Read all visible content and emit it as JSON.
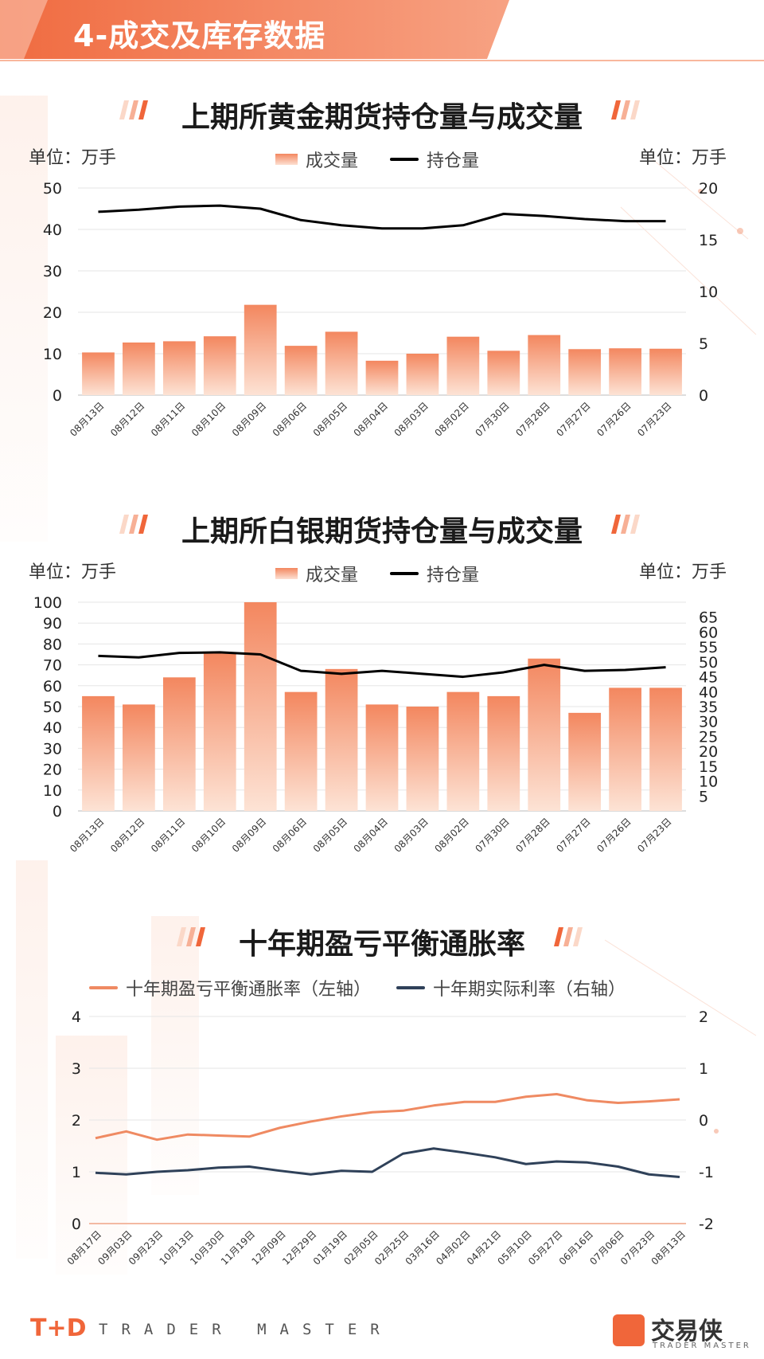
{
  "header": {
    "title": "4-成交及库存数据"
  },
  "gold": {
    "title": "上期所黄金期货持仓量与成交量",
    "unit_left": "单位：万手",
    "unit_right": "单位：万手",
    "legend_bar": "成交量",
    "legend_line": "持仓量"
  },
  "silver": {
    "title": "上期所白银期货持仓量与成交量",
    "unit_left": "单位：万手",
    "unit_right": "单位：万手",
    "legend_bar": "成交量",
    "legend_line": "持仓量"
  },
  "breakeven": {
    "title": "十年期盈亏平衡通胀率",
    "legend_a": "十年期盈亏平衡通胀率（左轴）",
    "legend_b": "十年期实际利率（右轴）"
  },
  "footer": {
    "logo": "T+D",
    "text": "TRADER MASTER",
    "brand": "交易侠",
    "brand_sub": "TRADER MASTER"
  },
  "colors": {
    "accent": "#f3875f",
    "line_dark": "#000000",
    "real_rate": "#2f4159",
    "breakeven": "#ef8a62"
  },
  "chart_data": [
    {
      "type": "bar",
      "categories": [
        "08月13日",
        "08月12日",
        "08月11日",
        "08月10日",
        "08月09日",
        "08月06日",
        "08月05日",
        "08月04日",
        "08月03日",
        "08月02日",
        "07月30日",
        "07月28日",
        "07月27日",
        "07月26日",
        "07月23日"
      ],
      "series": [
        {
          "name": "成交量",
          "axis": "left",
          "kind": "bar",
          "values": [
            10.3,
            12.7,
            13.0,
            14.2,
            21.8,
            11.9,
            15.3,
            8.3,
            10.0,
            14.1,
            10.7,
            14.5,
            11.1,
            11.3,
            11.2
          ]
        },
        {
          "name": "持仓量",
          "axis": "right",
          "kind": "line",
          "values": [
            17.7,
            17.9,
            18.2,
            18.3,
            18.0,
            16.9,
            16.4,
            16.1,
            16.1,
            16.4,
            17.5,
            17.3,
            17.0,
            16.8,
            16.8
          ]
        }
      ],
      "yleft": {
        "min": 0,
        "max": 50,
        "ticks": [
          0,
          10,
          20,
          30,
          40,
          50
        ]
      },
      "yright": {
        "min": 0,
        "max": 20,
        "ticks": [
          0,
          5,
          10,
          15,
          20
        ]
      }
    },
    {
      "type": "bar",
      "categories": [
        "08月13日",
        "08月12日",
        "08月11日",
        "08月10日",
        "08月09日",
        "08月06日",
        "08月05日",
        "08月04日",
        "08月03日",
        "08月02日",
        "07月30日",
        "07月28日",
        "07月27日",
        "07月26日",
        "07月23日"
      ],
      "series": [
        {
          "name": "成交量",
          "axis": "left",
          "kind": "bar",
          "values": [
            55,
            51,
            64,
            76,
            100,
            57,
            68,
            51,
            50,
            57,
            55,
            73,
            47,
            59,
            59
          ]
        },
        {
          "name": "持仓量",
          "axis": "right",
          "kind": "line",
          "values": [
            52.0,
            51.5,
            53.0,
            53.2,
            52.5,
            47.0,
            46.0,
            47.0,
            46.0,
            45.0,
            46.5,
            49.0,
            47.0,
            47.3,
            48.2
          ]
        }
      ],
      "yleft": {
        "min": 0,
        "max": 100,
        "ticks": [
          0,
          10,
          20,
          30,
          40,
          50,
          60,
          70,
          80,
          90,
          100
        ]
      },
      "yright": {
        "min": 0,
        "max": 70,
        "ticks": [
          5,
          10,
          15,
          20,
          25,
          30,
          35,
          40,
          45,
          50,
          55,
          60,
          65
        ]
      }
    },
    {
      "type": "line",
      "x": [
        "08月17日",
        "09月03日",
        "09月23日",
        "10月13日",
        "10月30日",
        "11月19日",
        "12月09日",
        "12月29日",
        "01月19日",
        "02月05日",
        "02月25日",
        "03月16日",
        "04月02日",
        "04月21日",
        "05月10日",
        "05月27日",
        "06月16日",
        "07月06日",
        "07月23日",
        "08月13日"
      ],
      "series": [
        {
          "name": "十年期盈亏平衡通胀率（左轴）",
          "axis": "left",
          "values": [
            1.65,
            1.78,
            1.62,
            1.72,
            1.7,
            1.68,
            1.85,
            1.97,
            2.07,
            2.15,
            2.18,
            2.28,
            2.35,
            2.35,
            2.45,
            2.5,
            2.38,
            2.33,
            2.36,
            2.4
          ]
        },
        {
          "name": "十年期实际利率（右轴）",
          "axis": "right",
          "values": [
            -1.02,
            -1.05,
            -1.0,
            -0.97,
            -0.92,
            -0.9,
            -0.98,
            -1.05,
            -0.98,
            -1.0,
            -0.65,
            -0.55,
            -0.63,
            -0.72,
            -0.85,
            -0.8,
            -0.82,
            -0.9,
            -1.05,
            -1.1
          ]
        }
      ],
      "yleft": {
        "min": 0,
        "max": 4,
        "ticks": [
          0,
          1,
          2,
          3,
          4
        ]
      },
      "yright": {
        "min": -2,
        "max": 2,
        "ticks": [
          -2,
          -1,
          0,
          1,
          2
        ]
      }
    }
  ]
}
